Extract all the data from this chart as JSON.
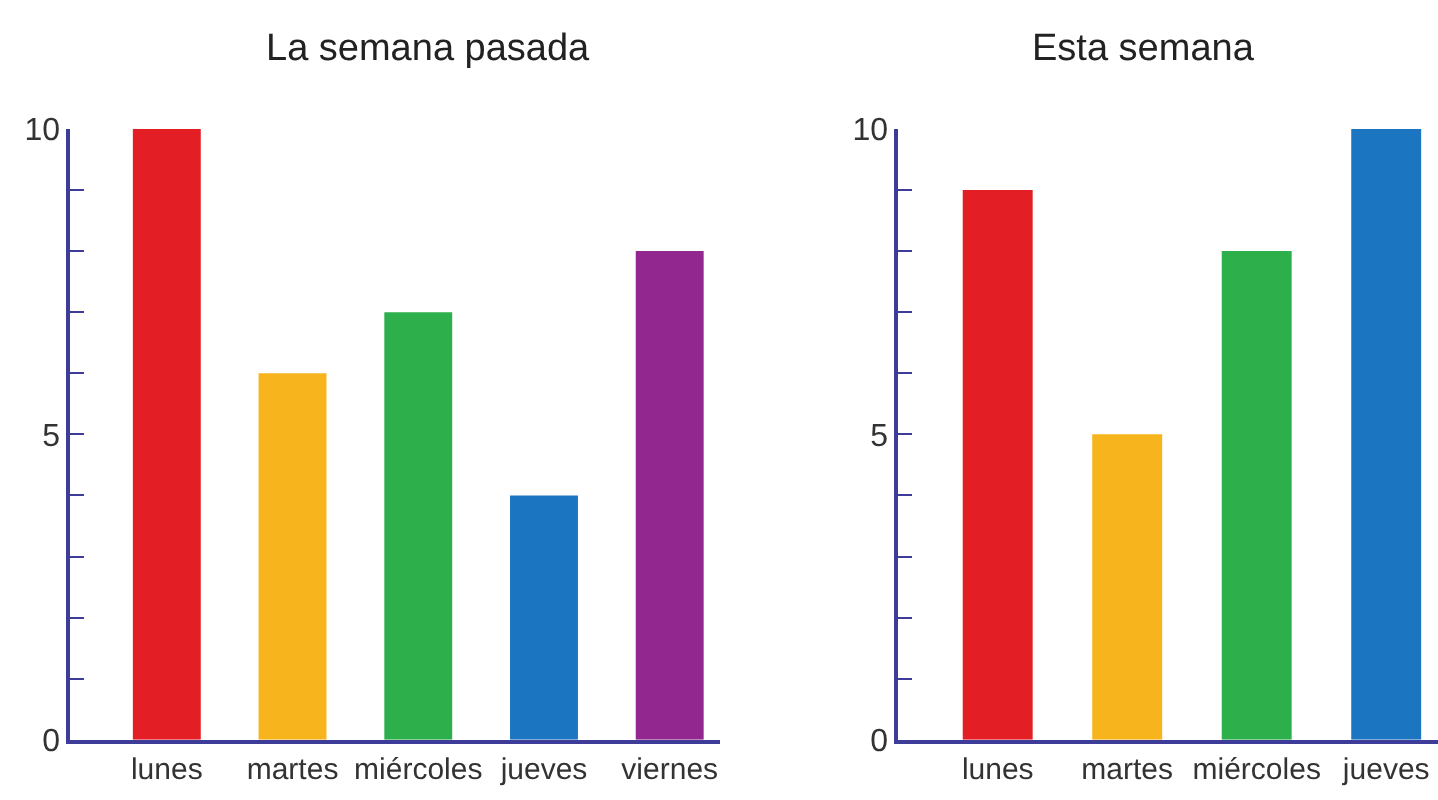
{
  "chart_data": [
    {
      "type": "bar",
      "title": "La semana pasada",
      "categories": [
        "lunes",
        "martes",
        "miércoles",
        "jueves",
        "viernes"
      ],
      "values": [
        10,
        6,
        7,
        4,
        8
      ],
      "colors": [
        "#e31e24",
        "#f8b41c",
        "#2db04b",
        "#1b75c1",
        "#92278f"
      ],
      "ylim": [
        0,
        10
      ],
      "yticks": [
        0,
        {
          "value": 1,
          "label": null
        },
        {
          "value": 2,
          "label": null
        },
        {
          "value": 3,
          "label": null
        },
        {
          "value": 4,
          "label": null
        },
        5,
        {
          "value": 6,
          "label": null
        },
        {
          "value": 7,
          "label": null
        },
        {
          "value": 8,
          "label": null
        },
        {
          "value": 9,
          "label": null
        },
        10
      ]
    },
    {
      "type": "bar",
      "title": "Esta semana",
      "categories": [
        "lunes",
        "martes",
        "miércoles",
        "jueves"
      ],
      "values": [
        9,
        5,
        8,
        10
      ],
      "colors": [
        "#e31e24",
        "#f8b41c",
        "#2db04b",
        "#1b75c1"
      ],
      "ylim": [
        0,
        10
      ],
      "yticks": [
        0,
        {
          "value": 1,
          "label": null
        },
        {
          "value": 2,
          "label": null
        },
        {
          "value": 3,
          "label": null
        },
        {
          "value": 4,
          "label": null
        },
        5,
        {
          "value": 6,
          "label": null
        },
        {
          "value": 7,
          "label": null
        },
        {
          "value": 8,
          "label": null
        },
        {
          "value": 9,
          "label": null
        },
        10
      ]
    }
  ]
}
